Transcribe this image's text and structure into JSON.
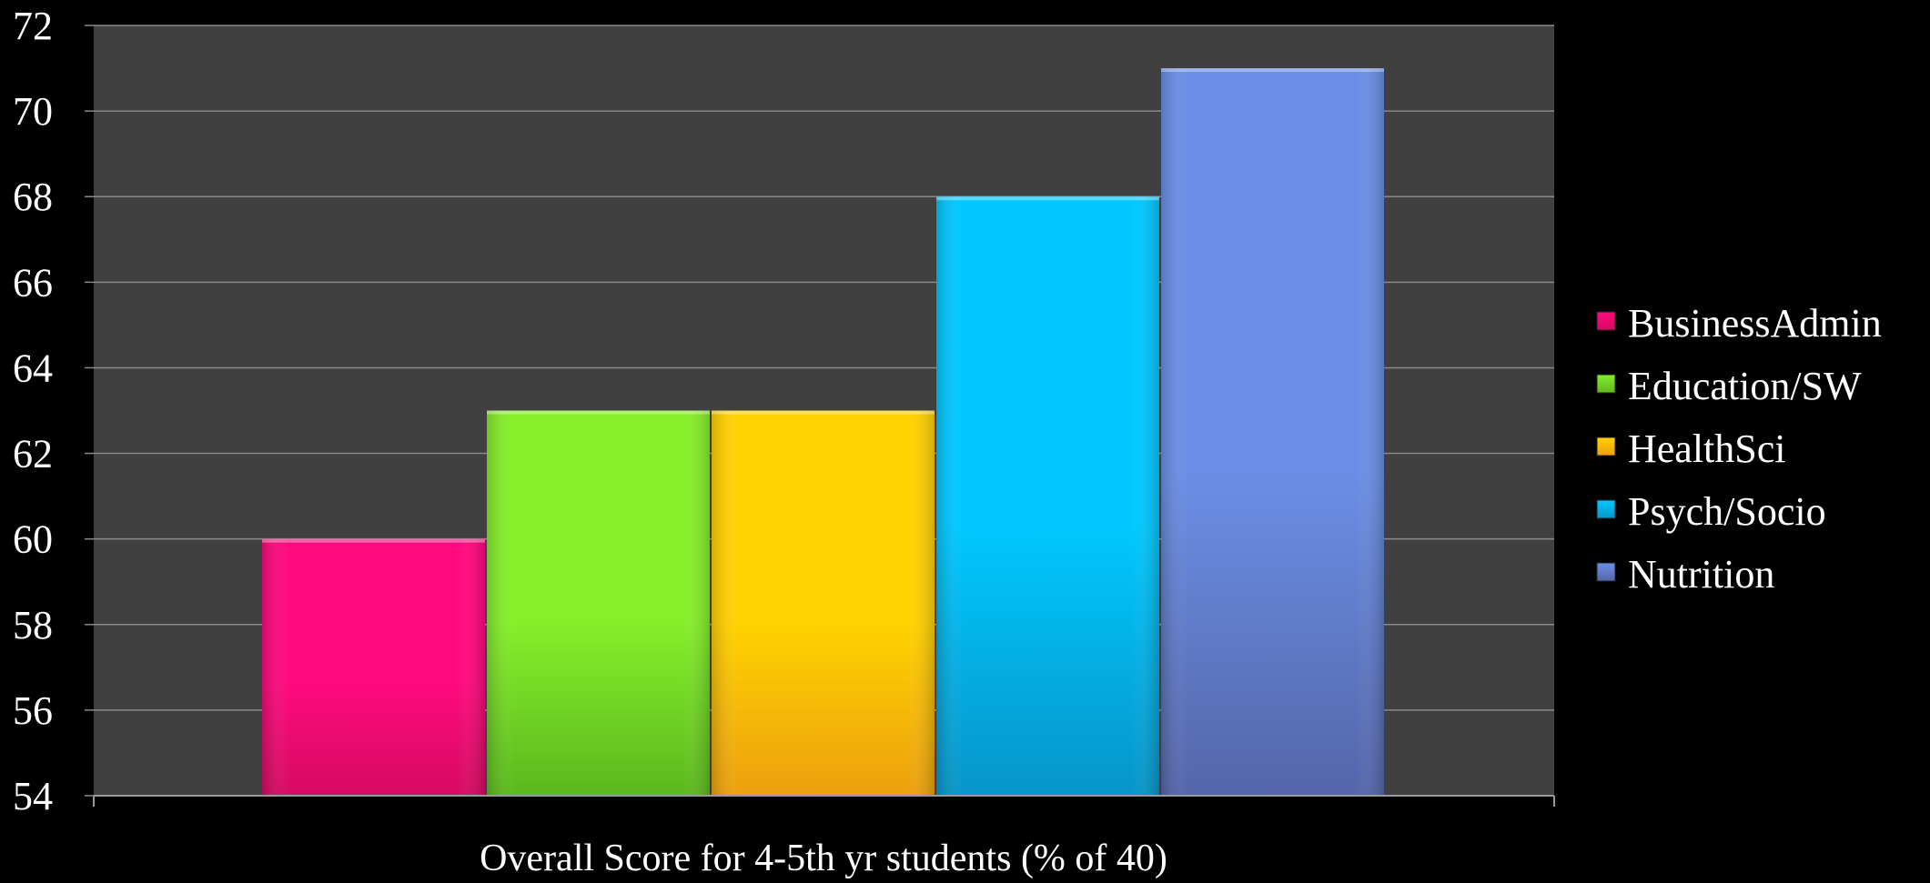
{
  "chart_data": {
    "type": "bar",
    "categories": [
      "BusinessAdmin",
      "Education/SW",
      "HealthSci",
      "Psych/Socio",
      "Nutrition"
    ],
    "values": [
      60,
      63,
      63,
      68,
      71
    ],
    "series": [
      {
        "name": "BusinessAdmin",
        "value": 60,
        "color": "#ff0a7e",
        "color_dark": "#d60a63"
      },
      {
        "name": "Education/SW",
        "value": 63,
        "color": "#86ee2a",
        "color_dark": "#5cb81e"
      },
      {
        "name": "HealthSci",
        "value": 63,
        "color": "#ffd200",
        "color_dark": "#eca00e"
      },
      {
        "name": "Psych/Socio",
        "value": 68,
        "color": "#00c8ff",
        "color_dark": "#0795c9"
      },
      {
        "name": "Nutrition",
        "value": 71,
        "color": "#6b8fe6",
        "color_dark": "#5566aa"
      }
    ],
    "title": "",
    "xlabel": "Overall Score for 4-5th yr students (% of 40)",
    "ylabel": "",
    "ylim": [
      54,
      72
    ],
    "yticks": [
      54,
      56,
      58,
      60,
      62,
      64,
      66,
      68,
      70,
      72
    ],
    "grid": true,
    "legend_position": "right",
    "plot_background": "#404040",
    "background": "#000000",
    "gridline_color": "#8a8a8a"
  }
}
